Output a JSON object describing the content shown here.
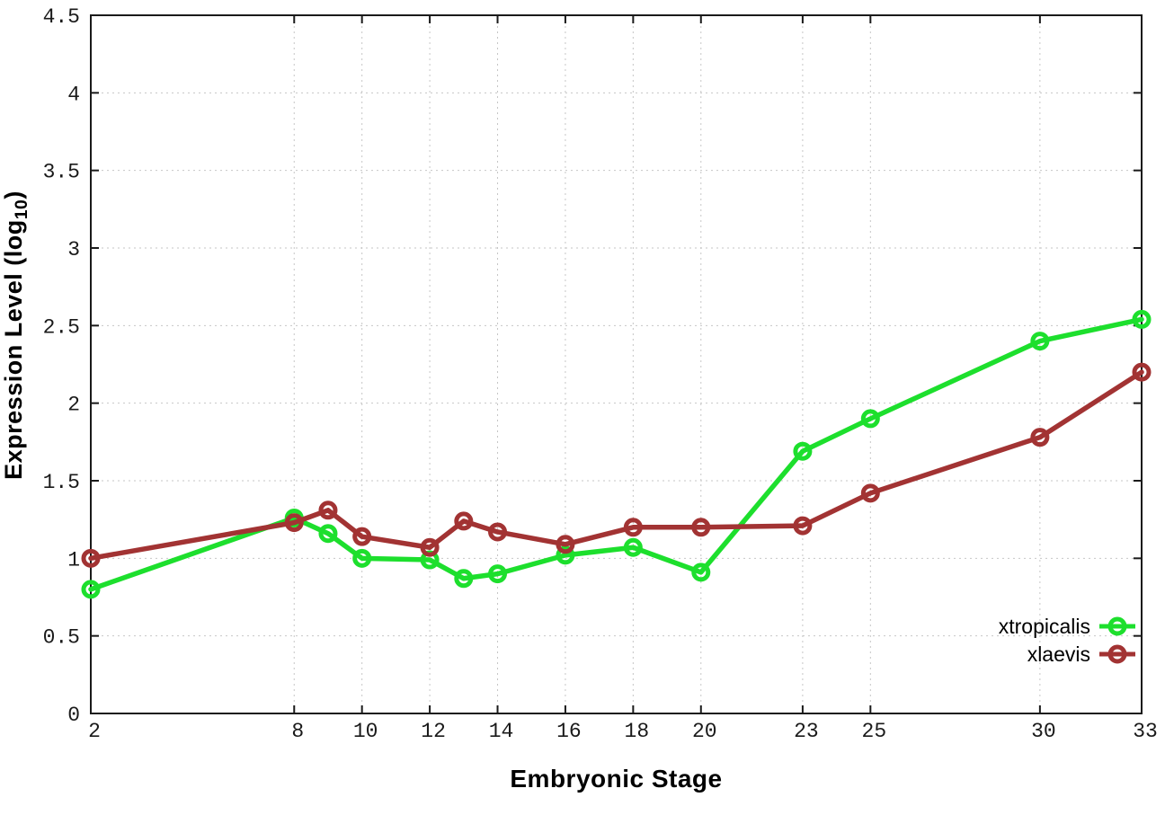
{
  "chart_data": {
    "type": "line",
    "title": "",
    "xlabel": "Embryonic Stage",
    "ylabel": "Expression Level (log10)",
    "ylabel_main": "Expression Level (log",
    "ylabel_sub": "10",
    "ylabel_end": ")",
    "xlim": [
      2,
      33
    ],
    "ylim": [
      0,
      4.5
    ],
    "x_ticks": [
      2,
      8,
      10,
      12,
      14,
      16,
      18,
      20,
      23,
      25,
      30,
      33
    ],
    "y_ticks": [
      0,
      0.5,
      1,
      1.5,
      2,
      2.5,
      3,
      3.5,
      4,
      4.5
    ],
    "grid": true,
    "legend_position": "bottom-right-inside",
    "x": [
      2,
      8,
      9,
      10,
      12,
      13,
      14,
      16,
      18,
      20,
      23,
      25,
      30,
      33
    ],
    "series": [
      {
        "name": "xtropicalis",
        "color": "#1ddf2d",
        "values": [
          0.8,
          1.26,
          1.16,
          1.0,
          0.99,
          0.87,
          0.9,
          1.02,
          1.07,
          0.91,
          1.69,
          1.9,
          2.4,
          2.54
        ]
      },
      {
        "name": "xlaevis",
        "color": "#a23333",
        "values": [
          1.0,
          1.23,
          1.31,
          1.14,
          1.07,
          1.24,
          1.17,
          1.09,
          1.2,
          1.2,
          1.21,
          1.42,
          1.78,
          2.2
        ]
      }
    ],
    "axis_color": "#1a1a1a",
    "tick_label_color": "#1a1a1a",
    "grid_color": "#c6c6c6",
    "background": "#ffffff"
  }
}
